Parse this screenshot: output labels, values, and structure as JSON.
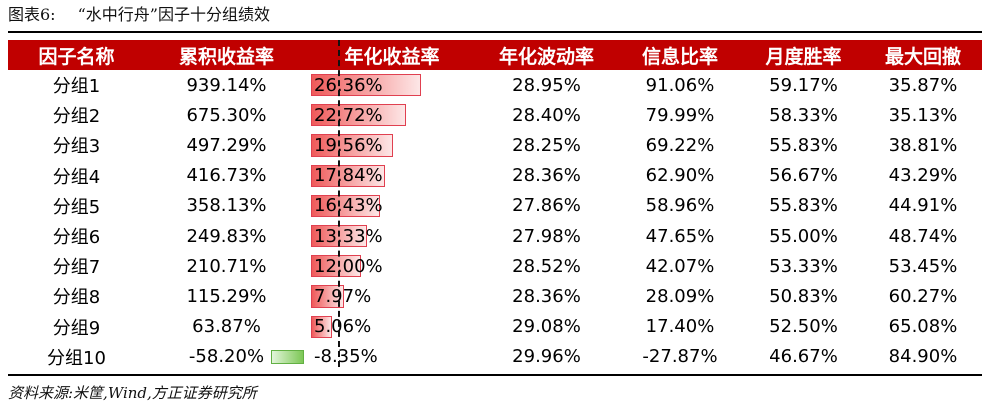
{
  "header": {
    "label": "图表6:",
    "title": "“水中行舟”因子十分组绩效"
  },
  "table": {
    "columns": [
      "因子名称",
      "累积收益率",
      "年化收益率",
      "年化波动率",
      "信息比率",
      "月度胜率",
      "最大回撤"
    ],
    "rows": [
      {
        "name": "分组1",
        "cum": "939.14%",
        "ann": "26.36%",
        "ann_value": 26.36,
        "vol": "28.95%",
        "ir": "91.06%",
        "win": "59.17%",
        "mdd": "35.87%"
      },
      {
        "name": "分组2",
        "cum": "675.30%",
        "ann": "22.72%",
        "ann_value": 22.72,
        "vol": "28.40%",
        "ir": "79.99%",
        "win": "58.33%",
        "mdd": "35.13%"
      },
      {
        "name": "分组3",
        "cum": "497.29%",
        "ann": "19.56%",
        "ann_value": 19.56,
        "vol": "28.25%",
        "ir": "69.22%",
        "win": "55.83%",
        "mdd": "38.81%"
      },
      {
        "name": "分组4",
        "cum": "416.73%",
        "ann": "17.84%",
        "ann_value": 17.84,
        "vol": "28.36%",
        "ir": "62.90%",
        "win": "56.67%",
        "mdd": "43.29%"
      },
      {
        "name": "分组5",
        "cum": "358.13%",
        "ann": "16.43%",
        "ann_value": 16.43,
        "vol": "27.86%",
        "ir": "58.96%",
        "win": "55.83%",
        "mdd": "44.91%"
      },
      {
        "name": "分组6",
        "cum": "249.83%",
        "ann": "13.33%",
        "ann_value": 13.33,
        "vol": "27.98%",
        "ir": "47.65%",
        "win": "55.00%",
        "mdd": "48.74%"
      },
      {
        "name": "分组7",
        "cum": "210.71%",
        "ann": "12.00%",
        "ann_value": 12.0,
        "vol": "28.52%",
        "ir": "42.07%",
        "win": "53.33%",
        "mdd": "53.45%"
      },
      {
        "name": "分组8",
        "cum": "115.29%",
        "ann": "7.97%",
        "ann_value": 7.97,
        "vol": "28.36%",
        "ir": "28.09%",
        "win": "50.83%",
        "mdd": "60.27%"
      },
      {
        "name": "分组9",
        "cum": "63.87%",
        "ann": "5.06%",
        "ann_value": 5.06,
        "vol": "29.08%",
        "ir": "17.40%",
        "win": "52.50%",
        "mdd": "65.08%"
      },
      {
        "name": "分组10",
        "cum": "-58.20%",
        "ann": "-8.35%",
        "ann_value": -8.35,
        "vol": "29.96%",
        "ir": "-27.87%",
        "win": "46.67%",
        "mdd": "84.90%"
      }
    ]
  },
  "source": "资料来源:米筐,Wind,方正证券研究所",
  "colors": {
    "header_bg": "#c00000",
    "header_text": "#ffffff",
    "positive_bar": "#ef5a5a",
    "negative_bar": "#7cc755"
  }
}
